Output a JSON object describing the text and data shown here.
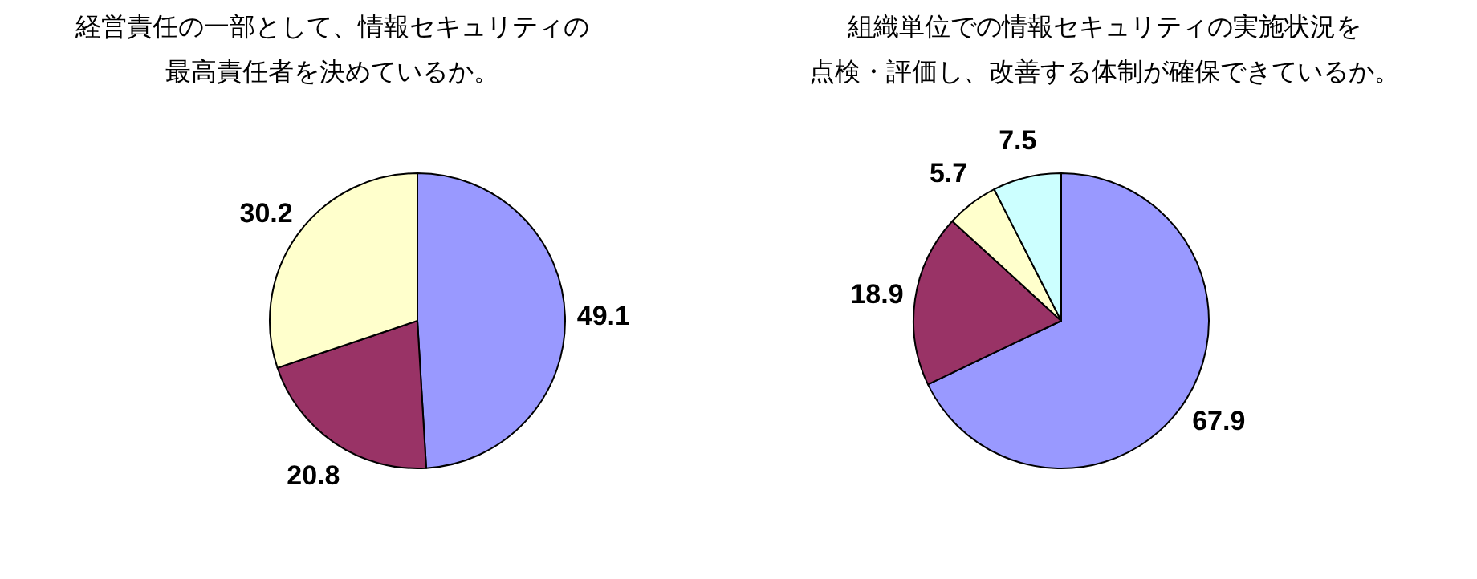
{
  "chart_data": [
    {
      "type": "pie",
      "title": "経営責任の一部として、情報セキュリティの最高責任者を決めているか。",
      "categories": [
        null,
        null,
        null
      ],
      "values": [
        49.1,
        20.8,
        30.2
      ],
      "colors": [
        "#9999ff",
        "#993366",
        "#ffffcc"
      ],
      "data_labels": true
    },
    {
      "type": "pie",
      "title": "組織単位での情報セキュリティの実施状況を点検・評価し、改善する体制が確保できているか。",
      "categories": [
        null,
        null,
        null,
        null
      ],
      "values": [
        67.9,
        18.9,
        5.7,
        7.5
      ],
      "colors": [
        "#9999ff",
        "#993366",
        "#ffffcc",
        "#ccffff"
      ],
      "data_labels": true
    }
  ]
}
